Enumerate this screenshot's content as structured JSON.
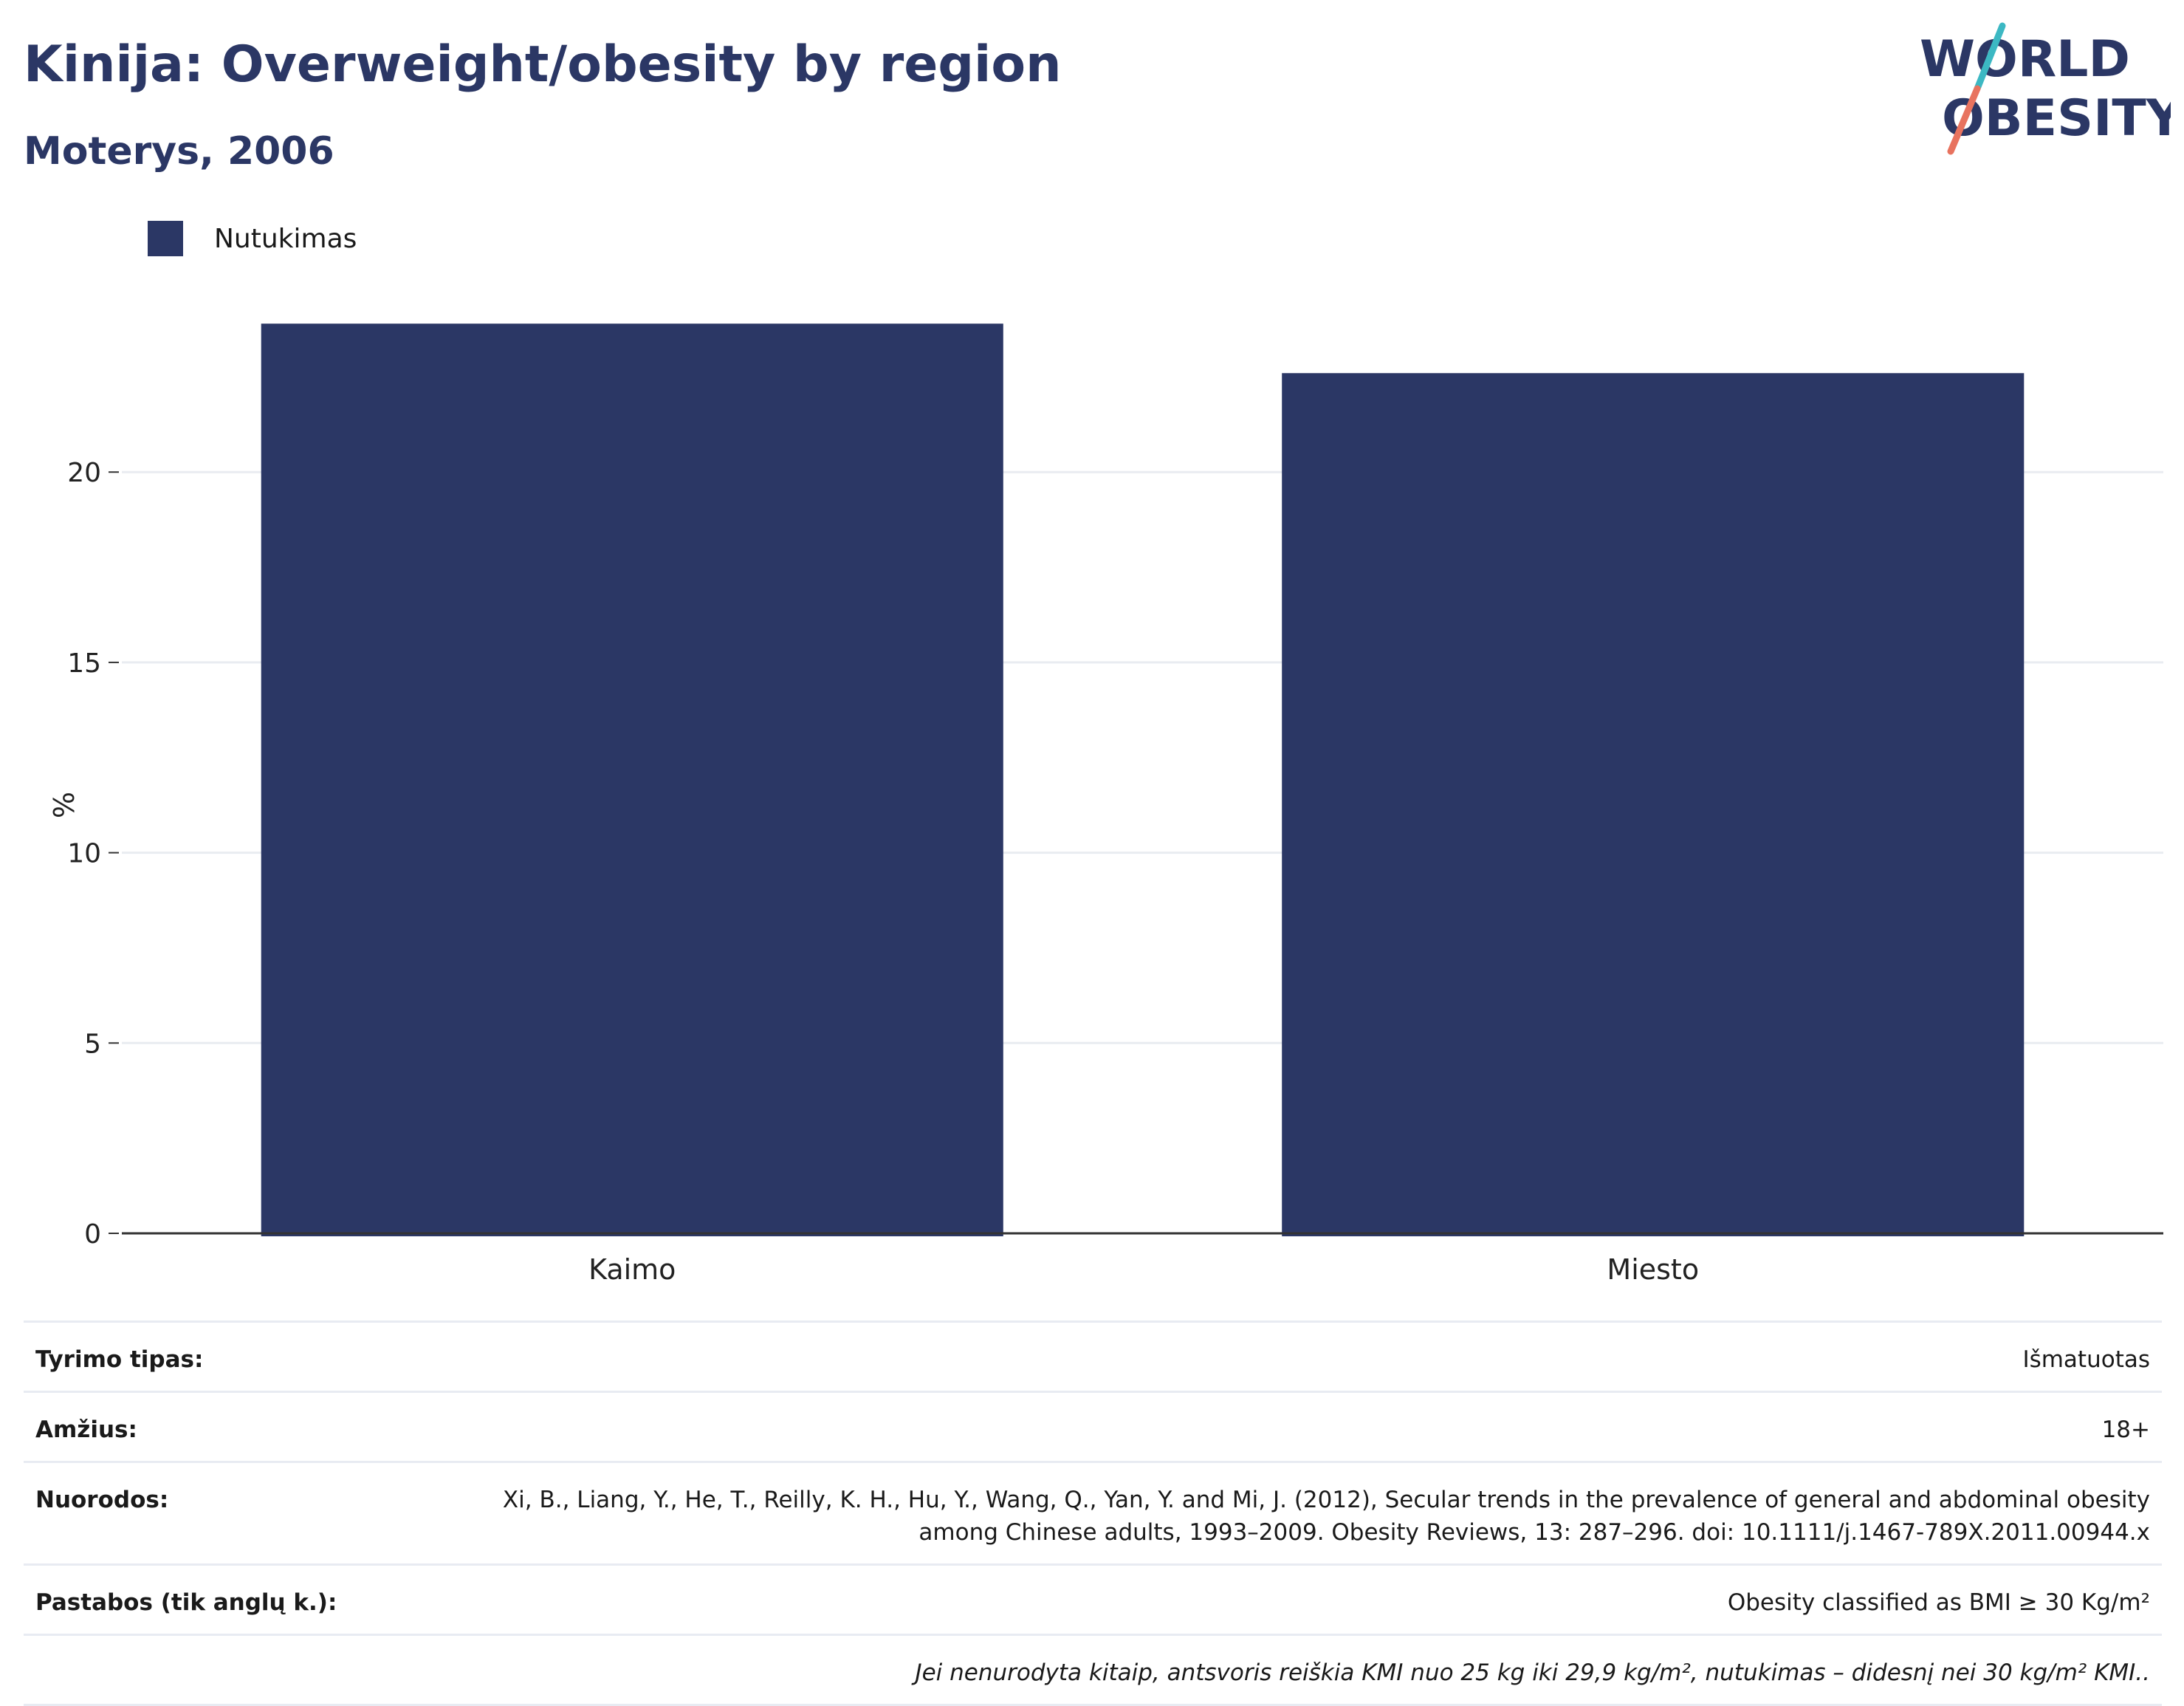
{
  "title": "Kinija: Overweight/obesity by region",
  "subtitle": "Moterys, 2006",
  "logo": {
    "line1": "WORLD",
    "line2": "OBESITY",
    "colors": {
      "text": "#2b3765",
      "slash_top": "#3cb8c3",
      "slash_bottom": "#e8735f"
    }
  },
  "colors": {
    "bar": "#2b3765",
    "grid": "#e9ecf1",
    "axis": "#333333"
  },
  "chart_data": {
    "type": "bar",
    "categories": [
      "Kaimo",
      "Miesto"
    ],
    "series": [
      {
        "name": "Nutukimas",
        "values": [
          23.9,
          22.6
        ]
      }
    ],
    "ylabel": "%",
    "xlabel": "",
    "ylim": [
      0,
      26
    ],
    "yticks": [
      0,
      5,
      10,
      15,
      20
    ],
    "grid": true,
    "legend_position": "top-left"
  },
  "info": {
    "rows": [
      {
        "label": "Tyrimo tipas:",
        "value": "Išmatuotas"
      },
      {
        "label": "Amžius:",
        "value": "18+"
      },
      {
        "label": "Nuorodos:",
        "value": "Xi, B., Liang, Y., He, T., Reilly, K. H., Hu, Y., Wang, Q., Yan, Y. and Mi, J. (2012), Secular trends in the prevalence of general and abdominal obesity among Chinese adults, 1993–2009. Obesity Reviews, 13: 287–296. doi: 10.1111/j.1467-789X.2011.00944.x"
      },
      {
        "label": "Pastabos (tik anglų k.):",
        "value": "Obesity classified as BMI ≥ 30 Kg/m²"
      }
    ],
    "note": "Jei nenurodyta kitaip, antsvoris reiškia KMI nuo 25 kg iki 29,9 kg/m², nutukimas – didesnį nei 30 kg/m² KMI.."
  }
}
